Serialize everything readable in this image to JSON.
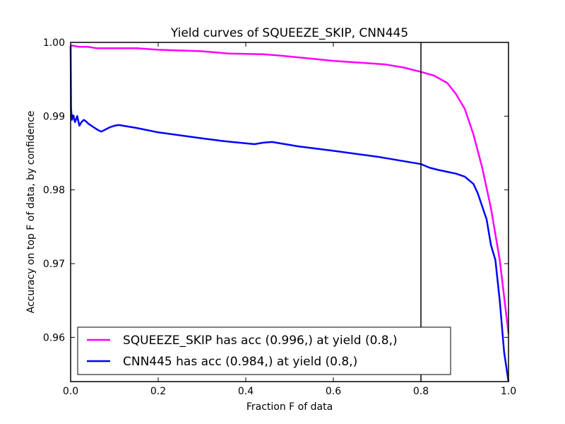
{
  "chart_data": {
    "type": "line",
    "title": "Yield curves of SQUEEZE_SKIP, CNN445",
    "xlabel": "Fraction F of data",
    "ylabel": "Accuracy on top F of data, by confidence",
    "xlim": [
      0.0,
      1.0
    ],
    "ylim": [
      0.954,
      1.0
    ],
    "xticks": [
      "0.0",
      "0.2",
      "0.4",
      "0.6",
      "0.8",
      "1.0"
    ],
    "yticks": [
      "0.96",
      "0.97",
      "0.98",
      "0.99",
      "1.00"
    ],
    "grid": false,
    "legend_position": "lower-left",
    "vline_x": 0.8,
    "series": [
      {
        "name": "SQUEEZE_SKIP has acc (0.996,) at yield (0.8,)",
        "color": "#ff00ff",
        "x": [
          0.0,
          0.002,
          0.01,
          0.02,
          0.03,
          0.04,
          0.05,
          0.06,
          0.08,
          0.1,
          0.15,
          0.2,
          0.3,
          0.36,
          0.44,
          0.48,
          0.55,
          0.6,
          0.65,
          0.72,
          0.76,
          0.8,
          0.83,
          0.86,
          0.88,
          0.9,
          0.92,
          0.94,
          0.96,
          0.98,
          1.0
        ],
        "y": [
          0.9994,
          0.9996,
          0.9995,
          0.9994,
          0.9994,
          0.9994,
          0.9993,
          0.9992,
          0.9992,
          0.9992,
          0.9992,
          0.999,
          0.9988,
          0.9985,
          0.9984,
          0.9982,
          0.9978,
          0.9975,
          0.9973,
          0.997,
          0.9966,
          0.996,
          0.9955,
          0.9945,
          0.993,
          0.991,
          0.9875,
          0.983,
          0.9775,
          0.9705,
          0.9605
        ]
      },
      {
        "name": "CNN445 has acc (0.984,) at yield (0.8,)",
        "color": "#0000ff",
        "x": [
          0.0,
          0.001,
          0.003,
          0.006,
          0.01,
          0.015,
          0.02,
          0.025,
          0.03,
          0.035,
          0.04,
          0.05,
          0.06,
          0.07,
          0.08,
          0.09,
          0.1,
          0.11,
          0.15,
          0.2,
          0.3,
          0.35,
          0.42,
          0.44,
          0.46,
          0.48,
          0.49,
          0.52,
          0.6,
          0.7,
          0.8,
          0.82,
          0.84,
          0.88,
          0.9,
          0.92,
          0.93,
          0.95,
          0.96,
          0.97,
          0.98,
          0.99,
          1.0
        ],
        "y": [
          0.9995,
          0.991,
          0.9895,
          0.9901,
          0.9892,
          0.99,
          0.9887,
          0.9892,
          0.9895,
          0.9893,
          0.989,
          0.9886,
          0.9882,
          0.9879,
          0.9882,
          0.9885,
          0.9887,
          0.9888,
          0.9884,
          0.9878,
          0.987,
          0.9866,
          0.9862,
          0.9864,
          0.9865,
          0.9863,
          0.9862,
          0.9859,
          0.9853,
          0.9845,
          0.9835,
          0.983,
          0.9827,
          0.9822,
          0.9818,
          0.9808,
          0.9795,
          0.976,
          0.9725,
          0.9705,
          0.965,
          0.958,
          0.954
        ]
      }
    ]
  }
}
